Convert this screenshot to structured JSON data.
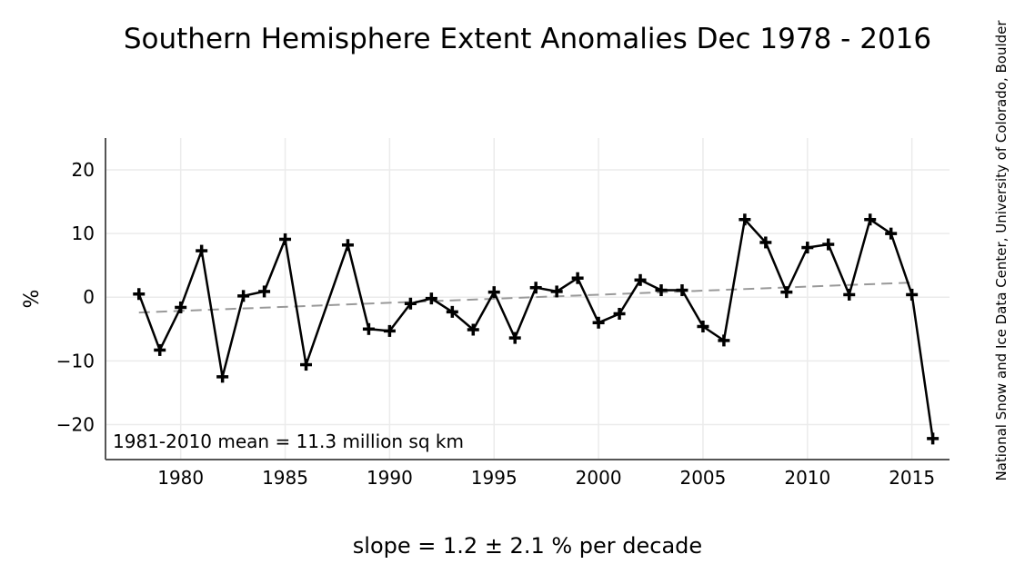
{
  "chart_data": {
    "type": "line",
    "title": "Southern Hemisphere Extent Anomalies Dec 1978 - 2016",
    "ylabel": "%",
    "xlabel": "slope = 1.2 ± 2.1 % per decade",
    "annotation": "1981-2010 mean = 11.3 million sq km",
    "credit": "National Snow and Ice Data Center, University of Colorado, Boulder",
    "x_ticks": [
      "1980",
      "1985",
      "1990",
      "1995",
      "2000",
      "2005",
      "2010",
      "2015"
    ],
    "y_ticks": [
      "20",
      "10",
      "0",
      "−10",
      "−20"
    ],
    "xlim": [
      1976.4,
      2016.8
    ],
    "ylim": [
      -25.5,
      25
    ],
    "grid": true,
    "x": [
      1978,
      1979,
      1980,
      1981,
      1982,
      1983,
      1984,
      1985,
      1986,
      1988,
      1989,
      1990,
      1991,
      1992,
      1993,
      1994,
      1995,
      1996,
      1997,
      1998,
      1999,
      2000,
      2001,
      2002,
      2003,
      2004,
      2005,
      2006,
      2007,
      2008,
      2009,
      2010,
      2011,
      2012,
      2013,
      2014,
      2015,
      2016
    ],
    "y": [
      0.5,
      -8.3,
      -1.6,
      7.3,
      -12.5,
      0.2,
      0.9,
      9.1,
      -10.6,
      8.2,
      -5.0,
      -5.3,
      -1.0,
      -0.2,
      -2.3,
      -5.1,
      0.8,
      -6.4,
      1.5,
      0.9,
      3.0,
      -4.0,
      -2.6,
      2.7,
      1.1,
      1.1,
      -4.6,
      -6.8,
      12.2,
      8.6,
      0.8,
      7.8,
      8.3,
      0.4,
      12.2,
      10.0,
      0.4,
      -22.2
    ],
    "trend": {
      "x": [
        1978,
        2015
      ],
      "y": [
        -2.4,
        2.3
      ],
      "style": "dashed",
      "color": "#999999"
    },
    "series_color": "#000000",
    "grid_color": "#ebebeb"
  }
}
